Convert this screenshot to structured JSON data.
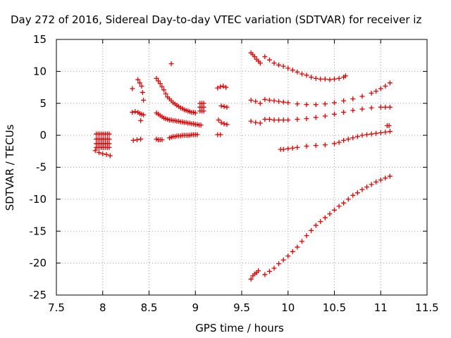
{
  "chart_data": {
    "type": "scatter",
    "title": "Day 272 of 2016, Sidereal Day-to-day VTEC variation (SDTVAR) for receiver iz",
    "xlabel": "GPS time / hours",
    "ylabel": "SDTVAR / TECUs",
    "xlim": [
      7.5,
      11.5
    ],
    "ylim": [
      -25,
      15
    ],
    "xticks": [
      "7.5",
      "8",
      "8.5",
      "9",
      "9.5",
      "10",
      "10.5",
      "11",
      "11.5"
    ],
    "yticks": [
      "15",
      "10",
      "5",
      "0",
      "-5",
      "-10",
      "-15",
      "-20",
      "-25"
    ],
    "grid": true,
    "marker": "+",
    "color": "#e00000",
    "series": [
      {
        "name": "arc-a-bottom",
        "x": [
          7.92,
          7.96,
          8.0,
          8.04,
          8.08
        ],
        "y": [
          -2.4,
          -2.7,
          -2.9,
          -3.0,
          -3.2
        ]
      },
      {
        "name": "block-7.95-8.05",
        "x": [
          7.93,
          7.95,
          7.97,
          7.99,
          8.01,
          8.03,
          8.05,
          8.07,
          7.93,
          7.95,
          7.97,
          7.99,
          8.01,
          8.03,
          8.05,
          8.07,
          7.93,
          7.95,
          7.97,
          7.99,
          8.01,
          8.03,
          8.05,
          8.07,
          7.93,
          7.95,
          7.97,
          7.99,
          8.01,
          8.03,
          8.05,
          8.07
        ],
        "y": [
          0.2,
          0.2,
          0.2,
          0.2,
          0.2,
          0.2,
          0.2,
          0.2,
          -0.6,
          -0.6,
          -0.6,
          -0.6,
          -0.6,
          -0.6,
          -0.6,
          -0.6,
          -1.3,
          -1.3,
          -1.3,
          -1.3,
          -1.3,
          -1.3,
          -1.3,
          -1.3,
          -1.9,
          -1.9,
          -1.9,
          -1.9,
          -1.9,
          -1.9,
          -1.9,
          -1.9
        ]
      },
      {
        "name": "arc-8.3-top",
        "x": [
          8.32,
          8.38,
          8.4,
          8.42
        ],
        "y": [
          7.3,
          8.7,
          8.2,
          7.7
        ]
      },
      {
        "name": "arc-8.3-mid",
        "x": [
          8.32,
          8.35,
          8.38,
          8.4,
          8.42,
          8.44
        ],
        "y": [
          3.6,
          3.7,
          3.6,
          3.4,
          3.3,
          3.2
        ]
      },
      {
        "name": "arc-8.3-extra",
        "x": [
          8.43,
          8.44,
          8.41
        ],
        "y": [
          6.7,
          5.5,
          2.3
        ]
      },
      {
        "name": "arc-8.3-low",
        "x": [
          8.33,
          8.37,
          8.41
        ],
        "y": [
          -0.8,
          -0.7,
          -0.6
        ]
      },
      {
        "name": "arc-8.74",
        "x": [
          8.74
        ],
        "y": [
          11.2
        ]
      },
      {
        "name": "arc-8.6-top",
        "x": [
          8.58,
          8.6,
          8.62,
          8.64,
          8.66,
          8.68,
          8.7,
          8.72,
          8.74,
          8.76,
          8.78,
          8.8,
          8.82,
          8.84,
          8.86,
          8.88,
          8.9,
          8.92,
          8.94,
          8.96,
          8.98,
          9.0
        ],
        "y": [
          8.9,
          8.5,
          8.1,
          7.6,
          7.1,
          6.5,
          6.0,
          5.7,
          5.4,
          5.1,
          4.9,
          4.7,
          4.5,
          4.3,
          4.2,
          4.0,
          3.9,
          3.8,
          3.7,
          3.6,
          3.6,
          3.5
        ]
      },
      {
        "name": "arc-8.6-mid",
        "x": [
          8.58,
          8.6,
          8.62,
          8.64,
          8.66,
          8.68,
          8.7,
          8.72,
          8.74,
          8.76,
          8.78,
          8.8,
          8.82,
          8.84,
          8.86,
          8.88,
          8.9,
          8.92,
          8.94,
          8.96,
          8.98,
          9.0,
          9.02,
          9.04,
          9.06
        ],
        "y": [
          3.5,
          3.3,
          3.1,
          2.9,
          2.7,
          2.6,
          2.5,
          2.4,
          2.4,
          2.3,
          2.3,
          2.2,
          2.2,
          2.1,
          2.1,
          2.0,
          2.0,
          1.9,
          1.9,
          1.8,
          1.8,
          1.7,
          1.7,
          1.6,
          1.6
        ]
      },
      {
        "name": "arc-8.6-low",
        "x": [
          8.58,
          8.6,
          8.62,
          8.64,
          8.72,
          8.74,
          8.76,
          8.78,
          8.8,
          8.82,
          8.84,
          8.86,
          8.88,
          8.9,
          8.92,
          8.94,
          8.96,
          8.98,
          9.0,
          9.02
        ],
        "y": [
          -0.6,
          -0.7,
          -0.7,
          -0.7,
          -0.4,
          -0.3,
          -0.2,
          -0.2,
          -0.1,
          -0.1,
          -0.1,
          0.0,
          0.0,
          0.0,
          0.0,
          0.0,
          0.1,
          0.1,
          0.1,
          0.1
        ]
      },
      {
        "name": "arc-9.05",
        "x": [
          9.05,
          9.07,
          9.09,
          9.05,
          9.07,
          9.09,
          9.05,
          9.07,
          9.09
        ],
        "y": [
          5.0,
          5.0,
          5.0,
          4.4,
          4.4,
          4.4,
          3.8,
          3.8,
          3.8
        ]
      },
      {
        "name": "arc-9.25",
        "x": [
          9.24,
          9.27,
          9.3,
          9.33
        ],
        "y": [
          7.4,
          7.6,
          7.7,
          7.5
        ]
      },
      {
        "name": "arc-9.25-mid",
        "x": [
          9.28,
          9.31,
          9.34
        ],
        "y": [
          4.6,
          4.5,
          4.4
        ]
      },
      {
        "name": "arc-9.25-low",
        "x": [
          9.25,
          9.28,
          9.31,
          9.34
        ],
        "y": [
          2.4,
          2.0,
          1.8,
          1.7
        ]
      },
      {
        "name": "arc-9.25-zero",
        "x": [
          9.24,
          9.27
        ],
        "y": [
          0.1,
          0.1
        ]
      },
      {
        "name": "arc-top",
        "x": [
          9.6,
          9.62,
          9.64,
          9.66,
          9.68,
          9.7,
          9.75,
          9.8,
          9.85,
          9.9,
          9.95,
          10.0,
          10.05,
          10.1,
          10.15,
          10.2,
          10.25,
          10.3,
          10.35,
          10.4,
          10.45,
          10.5,
          10.55,
          10.6,
          10.62
        ],
        "y": [
          12.9,
          12.6,
          12.3,
          11.9,
          11.6,
          11.3,
          12.3,
          11.8,
          11.3,
          11.0,
          10.8,
          10.5,
          10.2,
          9.9,
          9.6,
          9.4,
          9.1,
          8.9,
          8.8,
          8.8,
          8.7,
          8.8,
          8.9,
          9.1,
          9.3
        ]
      },
      {
        "name": "arc-5",
        "x": [
          9.6,
          9.65,
          9.7,
          9.75,
          9.8,
          9.85,
          9.9,
          9.95,
          10.0,
          10.1,
          10.2,
          10.3,
          10.4,
          10.5,
          10.6,
          10.7,
          10.8,
          10.9,
          10.95,
          11.0,
          11.05,
          11.1
        ],
        "y": [
          5.5,
          5.3,
          5.0,
          5.6,
          5.5,
          5.4,
          5.3,
          5.2,
          5.1,
          4.9,
          4.8,
          4.8,
          4.9,
          5.1,
          5.4,
          5.7,
          6.1,
          6.6,
          6.9,
          7.3,
          7.7,
          8.2
        ]
      },
      {
        "name": "arc-2",
        "x": [
          9.6,
          9.65,
          9.7,
          9.75,
          9.8,
          9.85,
          9.9,
          9.95,
          10.0,
          10.1,
          10.2,
          10.3,
          10.4,
          10.5,
          10.6,
          10.7,
          10.8,
          10.9,
          11.0,
          11.05,
          11.1
        ],
        "y": [
          2.2,
          2.0,
          1.9,
          2.5,
          2.5,
          2.4,
          2.4,
          2.4,
          2.4,
          2.5,
          2.6,
          2.8,
          3.0,
          3.3,
          3.6,
          3.9,
          4.1,
          4.3,
          4.4,
          4.4,
          4.4
        ]
      },
      {
        "name": "arc-0",
        "x": [
          9.92,
          9.95,
          10.0,
          10.05,
          10.1,
          10.2,
          10.3,
          10.4,
          10.5,
          10.55,
          10.6,
          10.65,
          10.7,
          10.75,
          10.8,
          10.85,
          10.9,
          10.95,
          11.0,
          11.05,
          11.07,
          11.09,
          11.1
        ],
        "y": [
          -2.2,
          -2.2,
          -2.1,
          -2.0,
          -1.9,
          -1.7,
          -1.6,
          -1.5,
          -1.3,
          -1.1,
          -0.8,
          -0.6,
          -0.4,
          -0.2,
          0.0,
          0.1,
          0.2,
          0.3,
          0.4,
          0.5,
          1.5,
          1.5,
          0.6
        ]
      },
      {
        "name": "arc-bottom",
        "x": [
          9.6,
          9.62,
          9.64,
          9.66,
          9.68,
          9.75,
          9.8,
          9.85,
          9.9,
          9.95,
          10.0,
          10.05,
          10.1,
          10.15,
          10.2,
          10.25,
          10.3,
          10.35,
          10.4,
          10.45,
          10.5,
          10.55,
          10.6,
          10.65,
          10.7,
          10.75,
          10.8,
          10.85,
          10.9,
          10.95,
          11.0,
          11.05,
          11.1
        ],
        "y": [
          -22.5,
          -22.0,
          -21.7,
          -21.5,
          -21.2,
          -21.8,
          -21.3,
          -20.8,
          -20.1,
          -19.5,
          -18.9,
          -18.2,
          -17.5,
          -16.6,
          -15.7,
          -14.9,
          -14.1,
          -13.5,
          -12.9,
          -12.3,
          -11.7,
          -11.1,
          -10.6,
          -10.0,
          -9.4,
          -9.0,
          -8.5,
          -8.1,
          -7.7,
          -7.3,
          -7.0,
          -6.7,
          -6.4
        ]
      }
    ]
  }
}
